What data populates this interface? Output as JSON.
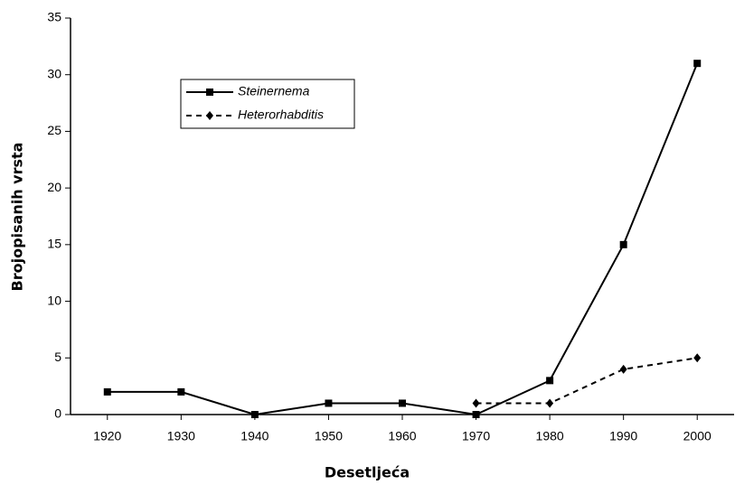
{
  "chart_data": {
    "type": "line",
    "x_label": "Desetljeća",
    "y_label": "Brojopisanih vrsta",
    "categories": [
      "1920",
      "1930",
      "1940",
      "1950",
      "1960",
      "1970",
      "1980",
      "1990",
      "2000"
    ],
    "series": [
      {
        "name": "Steinernema",
        "color": "#000000",
        "line_style": "solid",
        "marker": "square",
        "values": [
          2,
          2,
          0,
          1,
          1,
          0,
          3,
          15,
          31
        ]
      },
      {
        "name": "Heterorhabditis",
        "color": "#000000",
        "line_style": "dashed",
        "marker": "diamond",
        "values": [
          null,
          null,
          null,
          null,
          null,
          1,
          1,
          4,
          5
        ]
      }
    ],
    "ylim": [
      0,
      35
    ],
    "yticks": [
      0,
      5,
      10,
      15,
      20,
      25,
      30,
      35
    ],
    "grid": false,
    "legend": "upper left"
  }
}
